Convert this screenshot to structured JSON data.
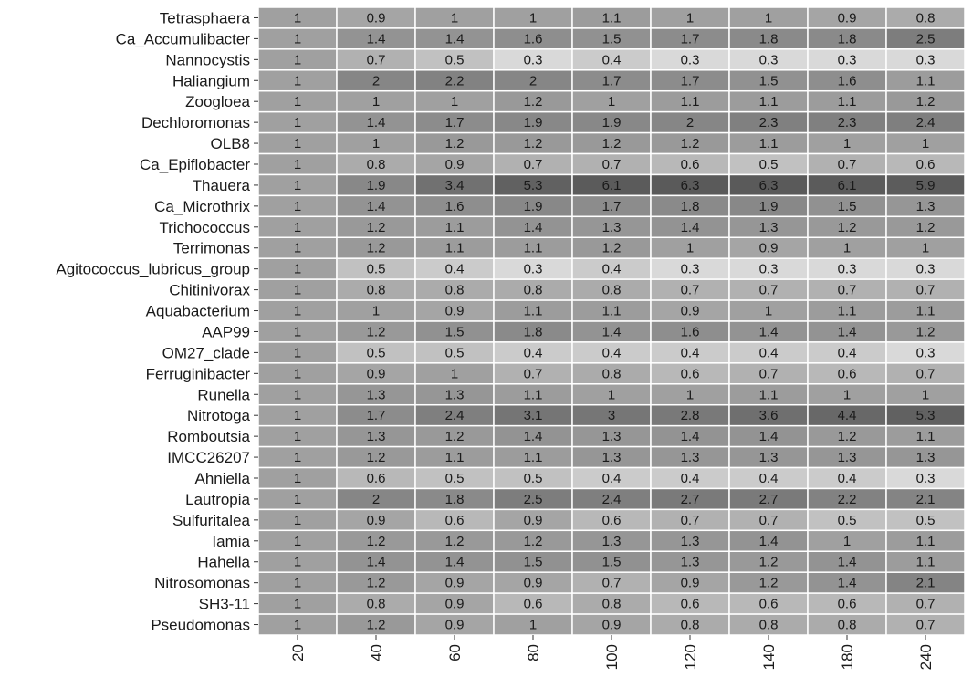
{
  "chart_data": {
    "type": "heatmap",
    "title": "",
    "xlabel": "",
    "ylabel": "",
    "x": [
      "20",
      "40",
      "60",
      "80",
      "100",
      "120",
      "140",
      "180",
      "240"
    ],
    "y": [
      "Tetrasphaera",
      "Ca_Accumulibacter",
      "Nannocystis",
      "Haliangium",
      "Zoogloea",
      "Dechloromonas",
      "OLB8",
      "Ca_Epiflobacter",
      "Thauera",
      "Ca_Microthrix",
      "Trichococcus",
      "Terrimonas",
      "Agitococcus_lubricus_group",
      "Chitinivorax",
      "Aquabacterium",
      "AAP99",
      "OM27_clade",
      "Ferruginibacter",
      "Runella",
      "Nitrotoga",
      "Romboutsia",
      "IMCC26207",
      "Ahniella",
      "Lautropia",
      "Sulfuritalea",
      "Iamia",
      "Hahella",
      "Nitrosomonas",
      "SH3-11",
      "Pseudomonas"
    ],
    "values": [
      [
        1,
        0.9,
        1,
        1,
        1.1,
        1,
        1,
        0.9,
        0.8
      ],
      [
        1,
        1.4,
        1.4,
        1.6,
        1.5,
        1.7,
        1.8,
        1.8,
        2.5
      ],
      [
        1,
        0.7,
        0.5,
        0.3,
        0.4,
        0.3,
        0.3,
        0.3,
        0.3
      ],
      [
        1,
        2,
        2.2,
        2,
        1.7,
        1.7,
        1.5,
        1.6,
        1.1
      ],
      [
        1,
        1,
        1,
        1.2,
        1,
        1.1,
        1.1,
        1.1,
        1.2
      ],
      [
        1,
        1.4,
        1.7,
        1.9,
        1.9,
        2,
        2.3,
        2.3,
        2.4
      ],
      [
        1,
        1,
        1.2,
        1.2,
        1.2,
        1.2,
        1.1,
        1,
        1
      ],
      [
        1,
        0.8,
        0.9,
        0.7,
        0.7,
        0.6,
        0.5,
        0.7,
        0.6
      ],
      [
        1,
        1.9,
        3.4,
        5.3,
        6.1,
        6.3,
        6.3,
        6.1,
        5.9
      ],
      [
        1,
        1.4,
        1.6,
        1.9,
        1.7,
        1.8,
        1.9,
        1.5,
        1.3
      ],
      [
        1,
        1.2,
        1.1,
        1.4,
        1.3,
        1.4,
        1.3,
        1.2,
        1.2
      ],
      [
        1,
        1.2,
        1.1,
        1.1,
        1.2,
        1,
        0.9,
        1,
        1
      ],
      [
        1,
        0.5,
        0.4,
        0.3,
        0.4,
        0.3,
        0.3,
        0.3,
        0.3
      ],
      [
        1,
        0.8,
        0.8,
        0.8,
        0.8,
        0.7,
        0.7,
        0.7,
        0.7
      ],
      [
        1,
        1,
        0.9,
        1.1,
        1.1,
        0.9,
        1,
        1.1,
        1.1
      ],
      [
        1,
        1.2,
        1.5,
        1.8,
        1.4,
        1.6,
        1.4,
        1.4,
        1.2
      ],
      [
        1,
        0.5,
        0.5,
        0.4,
        0.4,
        0.4,
        0.4,
        0.4,
        0.3
      ],
      [
        1,
        0.9,
        1,
        0.7,
        0.8,
        0.6,
        0.7,
        0.6,
        0.7
      ],
      [
        1,
        1.3,
        1.3,
        1.1,
        1,
        1,
        1.1,
        1,
        1
      ],
      [
        1,
        1.7,
        2.4,
        3.1,
        3,
        2.8,
        3.6,
        4.4,
        5.3
      ],
      [
        1,
        1.3,
        1.2,
        1.4,
        1.3,
        1.4,
        1.4,
        1.2,
        1.1
      ],
      [
        1,
        1.2,
        1.1,
        1.1,
        1.3,
        1.3,
        1.3,
        1.3,
        1.3
      ],
      [
        1,
        0.6,
        0.5,
        0.5,
        0.4,
        0.4,
        0.4,
        0.4,
        0.3
      ],
      [
        1,
        2,
        1.8,
        2.5,
        2.4,
        2.7,
        2.7,
        2.2,
        2.1
      ],
      [
        1,
        0.9,
        0.6,
        0.9,
        0.6,
        0.7,
        0.7,
        0.5,
        0.5
      ],
      [
        1,
        1.2,
        1.2,
        1.2,
        1.3,
        1.3,
        1.4,
        1,
        1.1
      ],
      [
        1,
        1.4,
        1.4,
        1.5,
        1.5,
        1.3,
        1.2,
        1.4,
        1.1
      ],
      [
        1,
        1.2,
        0.9,
        0.9,
        0.7,
        0.9,
        1.2,
        1.4,
        2.1
      ],
      [
        1,
        0.8,
        0.9,
        0.6,
        0.8,
        0.6,
        0.6,
        0.6,
        0.7
      ],
      [
        1,
        1.2,
        0.9,
        1,
        0.9,
        0.8,
        0.8,
        0.8,
        0.7
      ]
    ],
    "legend": "none",
    "colors": {
      "low": "#d9d9d9",
      "mid": "#a0a0a0",
      "high": "#5a5a5a",
      "cell_border": "#ffffff",
      "text": "#1a1a1a"
    }
  }
}
